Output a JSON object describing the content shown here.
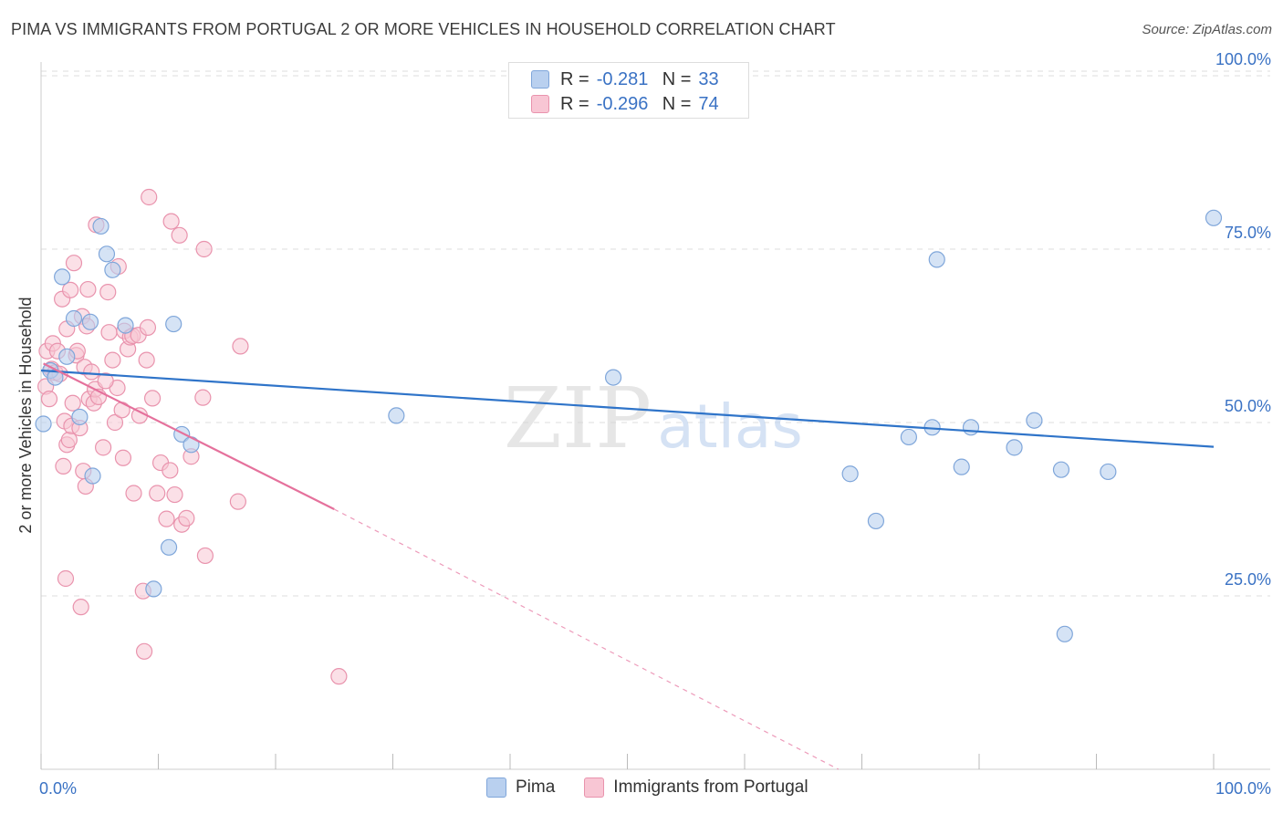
{
  "header": {
    "title": "PIMA VS IMMIGRANTS FROM PORTUGAL 2 OR MORE VEHICLES IN HOUSEHOLD CORRELATION CHART",
    "source": "Source: ZipAtlas.com"
  },
  "watermark": {
    "zip": "ZIP",
    "atlas": "atlas"
  },
  "legend": {
    "r_label": "R =",
    "n_label": "N =",
    "rows": [
      {
        "r": "-0.281",
        "n": "33"
      },
      {
        "r": "-0.296",
        "n": "74"
      }
    ]
  },
  "colors": {
    "pima_fill": "#b9d0ef",
    "pima_stroke": "#7fa6da",
    "pima_line": "#2f74c9",
    "portugal_fill": "#f8c6d4",
    "portugal_stroke": "#e993ad",
    "portugal_line": "#e5719c",
    "tick_label": "#3a72c4",
    "grid": "#dddddd"
  },
  "chart_data": {
    "type": "scatter",
    "title": "PIMA VS IMMIGRANTS FROM PORTUGAL 2 OR MORE VEHICLES IN HOUSEHOLD CORRELATION CHART",
    "xlabel": "",
    "ylabel": "2 or more Vehicles in Household",
    "xlim": [
      0,
      100
    ],
    "ylim": [
      0,
      103
    ],
    "x_tick_labels": {
      "min": "0.0%",
      "max": "100.0%"
    },
    "y_ticks": [
      {
        "value": 25,
        "label": "25.0%"
      },
      {
        "value": 50,
        "label": "50.0%"
      },
      {
        "value": 75,
        "label": "75.0%"
      },
      {
        "value": 100,
        "label": "100.0%"
      }
    ],
    "grid": true,
    "series": [
      {
        "name": "Pima",
        "r": -0.281,
        "n": 33,
        "trend": {
          "x_start": 0,
          "y_start": 57.5,
          "x_end": 100,
          "y_end": 46.5
        },
        "points": [
          [
            0.2,
            49.8
          ],
          [
            0.8,
            57.5
          ],
          [
            1.2,
            56.5
          ],
          [
            1.8,
            71.0
          ],
          [
            2.2,
            59.5
          ],
          [
            2.8,
            65.0
          ],
          [
            3.3,
            50.8
          ],
          [
            4.2,
            64.5
          ],
          [
            4.4,
            42.3
          ],
          [
            5.1,
            78.3
          ],
          [
            5.6,
            74.3
          ],
          [
            6.1,
            72.0
          ],
          [
            7.2,
            64.0
          ],
          [
            9.6,
            26.0
          ],
          [
            10.9,
            32.0
          ],
          [
            11.3,
            64.2
          ],
          [
            12.0,
            48.3
          ],
          [
            12.8,
            46.8
          ],
          [
            30.3,
            51.0
          ],
          [
            48.8,
            56.5
          ],
          [
            69.0,
            42.6
          ],
          [
            71.2,
            35.8
          ],
          [
            74.0,
            47.9
          ],
          [
            76.0,
            49.3
          ],
          [
            76.4,
            73.5
          ],
          [
            78.5,
            43.6
          ],
          [
            79.3,
            49.3
          ],
          [
            83.0,
            46.4
          ],
          [
            84.7,
            50.3
          ],
          [
            87.0,
            43.2
          ],
          [
            87.3,
            19.5
          ],
          [
            91.0,
            42.9
          ],
          [
            100.0,
            79.5
          ]
        ]
      },
      {
        "name": "Immigrants from Portugal",
        "r": -0.296,
        "n": 74,
        "trend": {
          "x_start": 0.2,
          "y_start": 58.5,
          "x_end": 25.0,
          "y_end": 37.5
        },
        "trend_ext": {
          "x_start": 25.0,
          "y_start": 37.5,
          "x_end": 68.0,
          "y_end": 0
        },
        "points": [
          [
            0.4,
            55.2
          ],
          [
            0.5,
            60.3
          ],
          [
            0.7,
            53.4
          ],
          [
            0.9,
            57.7
          ],
          [
            1.0,
            61.4
          ],
          [
            1.2,
            57.2
          ],
          [
            1.4,
            60.3
          ],
          [
            1.6,
            57.0
          ],
          [
            1.8,
            67.8
          ],
          [
            1.9,
            43.7
          ],
          [
            2.0,
            50.2
          ],
          [
            2.1,
            27.5
          ],
          [
            2.2,
            46.8
          ],
          [
            2.4,
            47.5
          ],
          [
            2.5,
            69.1
          ],
          [
            2.6,
            49.5
          ],
          [
            2.7,
            52.8
          ],
          [
            2.8,
            73.0
          ],
          [
            3.0,
            59.7
          ],
          [
            3.1,
            60.3
          ],
          [
            3.3,
            49.2
          ],
          [
            3.4,
            23.4
          ],
          [
            3.5,
            65.3
          ],
          [
            3.6,
            43.0
          ],
          [
            3.7,
            58.0
          ],
          [
            3.9,
            63.9
          ],
          [
            4.0,
            69.2
          ],
          [
            4.1,
            53.4
          ],
          [
            4.3,
            57.3
          ],
          [
            4.5,
            52.8
          ],
          [
            4.6,
            54.8
          ],
          [
            4.7,
            78.5
          ],
          [
            4.9,
            53.7
          ],
          [
            5.3,
            46.4
          ],
          [
            5.7,
            68.8
          ],
          [
            5.8,
            63.0
          ],
          [
            6.1,
            59.0
          ],
          [
            6.3,
            50.0
          ],
          [
            6.5,
            55.0
          ],
          [
            6.6,
            72.5
          ],
          [
            6.9,
            51.8
          ],
          [
            7.1,
            63.2
          ],
          [
            7.4,
            60.6
          ],
          [
            7.6,
            62.3
          ],
          [
            7.8,
            62.5
          ],
          [
            7.9,
            39.8
          ],
          [
            8.3,
            62.6
          ],
          [
            8.4,
            51.0
          ],
          [
            8.7,
            25.7
          ],
          [
            8.8,
            17.0
          ],
          [
            9.0,
            59.0
          ],
          [
            9.1,
            63.7
          ],
          [
            9.2,
            82.5
          ],
          [
            9.5,
            53.5
          ],
          [
            9.9,
            39.8
          ],
          [
            10.2,
            44.2
          ],
          [
            10.7,
            36.1
          ],
          [
            11.0,
            43.1
          ],
          [
            11.1,
            79.0
          ],
          [
            11.4,
            39.6
          ],
          [
            11.8,
            77.0
          ],
          [
            12.0,
            35.3
          ],
          [
            12.4,
            36.2
          ],
          [
            12.8,
            45.1
          ],
          [
            13.8,
            53.6
          ],
          [
            13.9,
            75.0
          ],
          [
            14.0,
            30.8
          ],
          [
            16.8,
            38.6
          ],
          [
            17.0,
            61.0
          ],
          [
            25.4,
            13.4
          ],
          [
            2.2,
            63.5
          ],
          [
            3.8,
            40.8
          ],
          [
            5.5,
            56.0
          ],
          [
            7.0,
            44.9
          ]
        ]
      }
    ]
  },
  "bottom_legend": {
    "items": [
      "Pima",
      "Immigrants from Portugal"
    ]
  }
}
